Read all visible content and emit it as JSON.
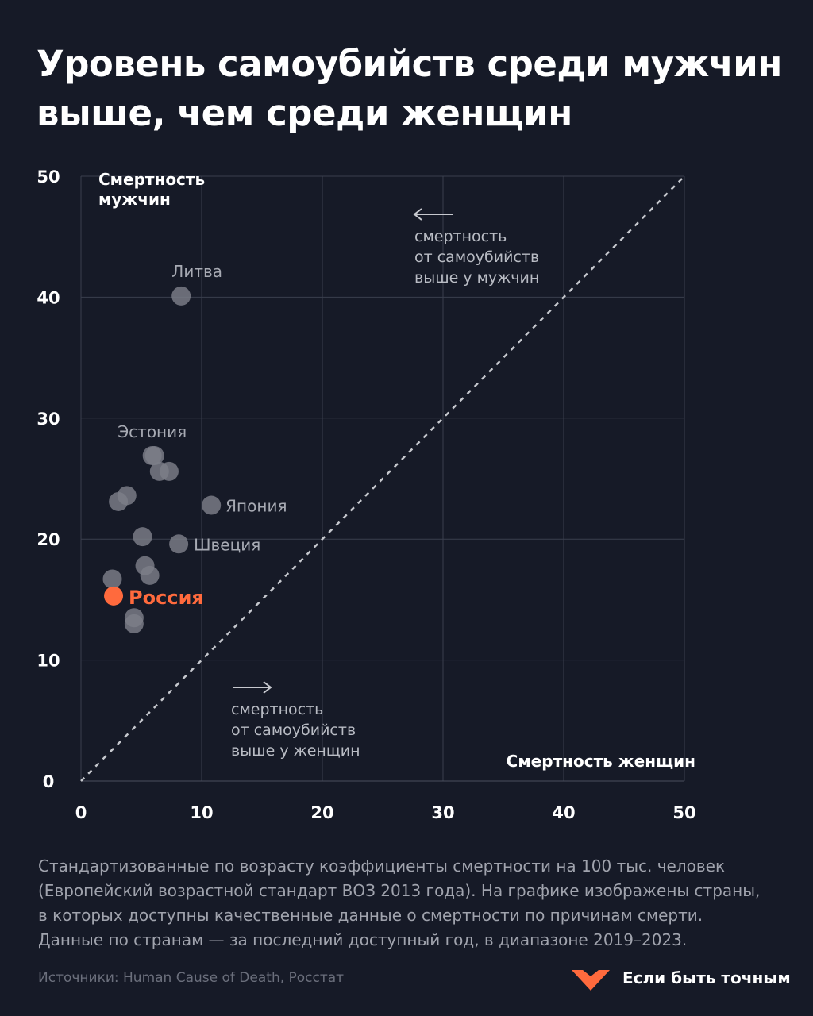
{
  "title": {
    "line1": "Уровень самоубийств среди мужчин",
    "line2": "выше, чем среди женщин"
  },
  "chart_data": {
    "type": "scatter",
    "xlabel": "Смертность женщин",
    "ylabel_lines": [
      "Смертность",
      "мужчин"
    ],
    "xlim": [
      0,
      50
    ],
    "ylim": [
      0,
      50
    ],
    "xticks": [
      "0",
      "10",
      "20",
      "30",
      "40",
      "50"
    ],
    "yticks": [
      "0",
      "10",
      "20",
      "30",
      "40",
      "50"
    ],
    "grid": true,
    "diagonal": "y = x",
    "colors": {
      "point": "#7c7f89",
      "highlight": "#ff6a3d",
      "grid": "#3a3f4e",
      "label": "#a7aab3"
    },
    "points": [
      {
        "x": 8.3,
        "y": 40.1,
        "label": "Литва"
      },
      {
        "x": 5.9,
        "y": 26.9,
        "label": "Эстония"
      },
      {
        "x": 6.1,
        "y": 26.9,
        "label": ""
      },
      {
        "x": 6.5,
        "y": 25.6,
        "label": ""
      },
      {
        "x": 7.3,
        "y": 25.6,
        "label": ""
      },
      {
        "x": 3.8,
        "y": 23.6,
        "label": ""
      },
      {
        "x": 3.1,
        "y": 23.1,
        "label": ""
      },
      {
        "x": 10.8,
        "y": 22.8,
        "label": "Япония"
      },
      {
        "x": 5.1,
        "y": 20.2,
        "label": ""
      },
      {
        "x": 8.1,
        "y": 19.6,
        "label": "Швеция"
      },
      {
        "x": 5.3,
        "y": 17.8,
        "label": ""
      },
      {
        "x": 5.7,
        "y": 17.0,
        "label": ""
      },
      {
        "x": 2.6,
        "y": 16.7,
        "label": ""
      },
      {
        "x": 4.4,
        "y": 13.5,
        "label": ""
      },
      {
        "x": 4.4,
        "y": 13.0,
        "label": ""
      },
      {
        "x": 2.7,
        "y": 15.3,
        "label": "Россия",
        "highlight": true
      }
    ],
    "annotations": [
      {
        "arrow": "left",
        "lines": [
          "смертность",
          "от самоубийств",
          "выше у мужчин"
        ]
      },
      {
        "arrow": "right",
        "lines": [
          "смертность",
          "от самоубийств",
          "выше у женщин"
        ]
      }
    ]
  },
  "caption": {
    "lines": [
      "Стандартизованные по возрасту коэффициенты смертности на 100 тыс. человек",
      "(Европейский возрастной стандарт ВОЗ 2013 года). На графике изображены страны,",
      "в которых доступны качественные данные о смертности по причинам смерти.",
      "Данные по странам — за последний доступный год, в диапазоне 2019–2023."
    ]
  },
  "source": "Источники: Human Cause of Death, Росстат",
  "brand": {
    "name": "Если быть точным",
    "color": "#ff6a3d"
  }
}
